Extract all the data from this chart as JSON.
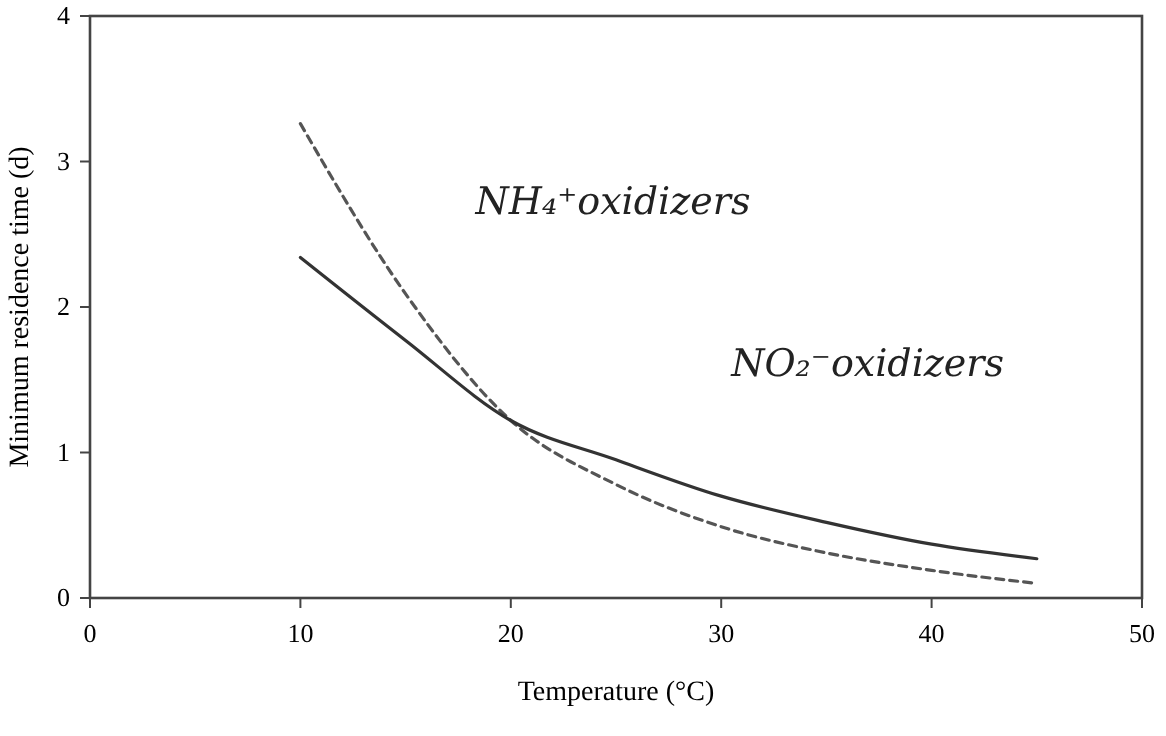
{
  "chart_data": {
    "type": "line",
    "xlabel": "Temperature (°C)",
    "ylabel": "Minimum residence time (d)",
    "xlim": [
      0,
      50
    ],
    "xticks": [
      0,
      10,
      20,
      30,
      40,
      50
    ],
    "ylim": [
      0,
      4
    ],
    "yticks": [
      0,
      1,
      2,
      3,
      4
    ],
    "grid": false,
    "x": [
      10,
      15,
      20,
      25,
      30,
      35,
      40,
      45
    ],
    "series": [
      {
        "name": "NH₄⁺oxidizers",
        "color": "#555555",
        "line_style": "dashed",
        "values": [
          3.26,
          2.09,
          1.22,
          0.78,
          0.49,
          0.31,
          0.19,
          0.1
        ]
      },
      {
        "name": "NO₂⁻oxidizers",
        "color": "#333333",
        "line_style": "solid",
        "values": [
          2.34,
          1.77,
          1.22,
          0.95,
          0.7,
          0.52,
          0.37,
          0.27
        ]
      }
    ]
  }
}
